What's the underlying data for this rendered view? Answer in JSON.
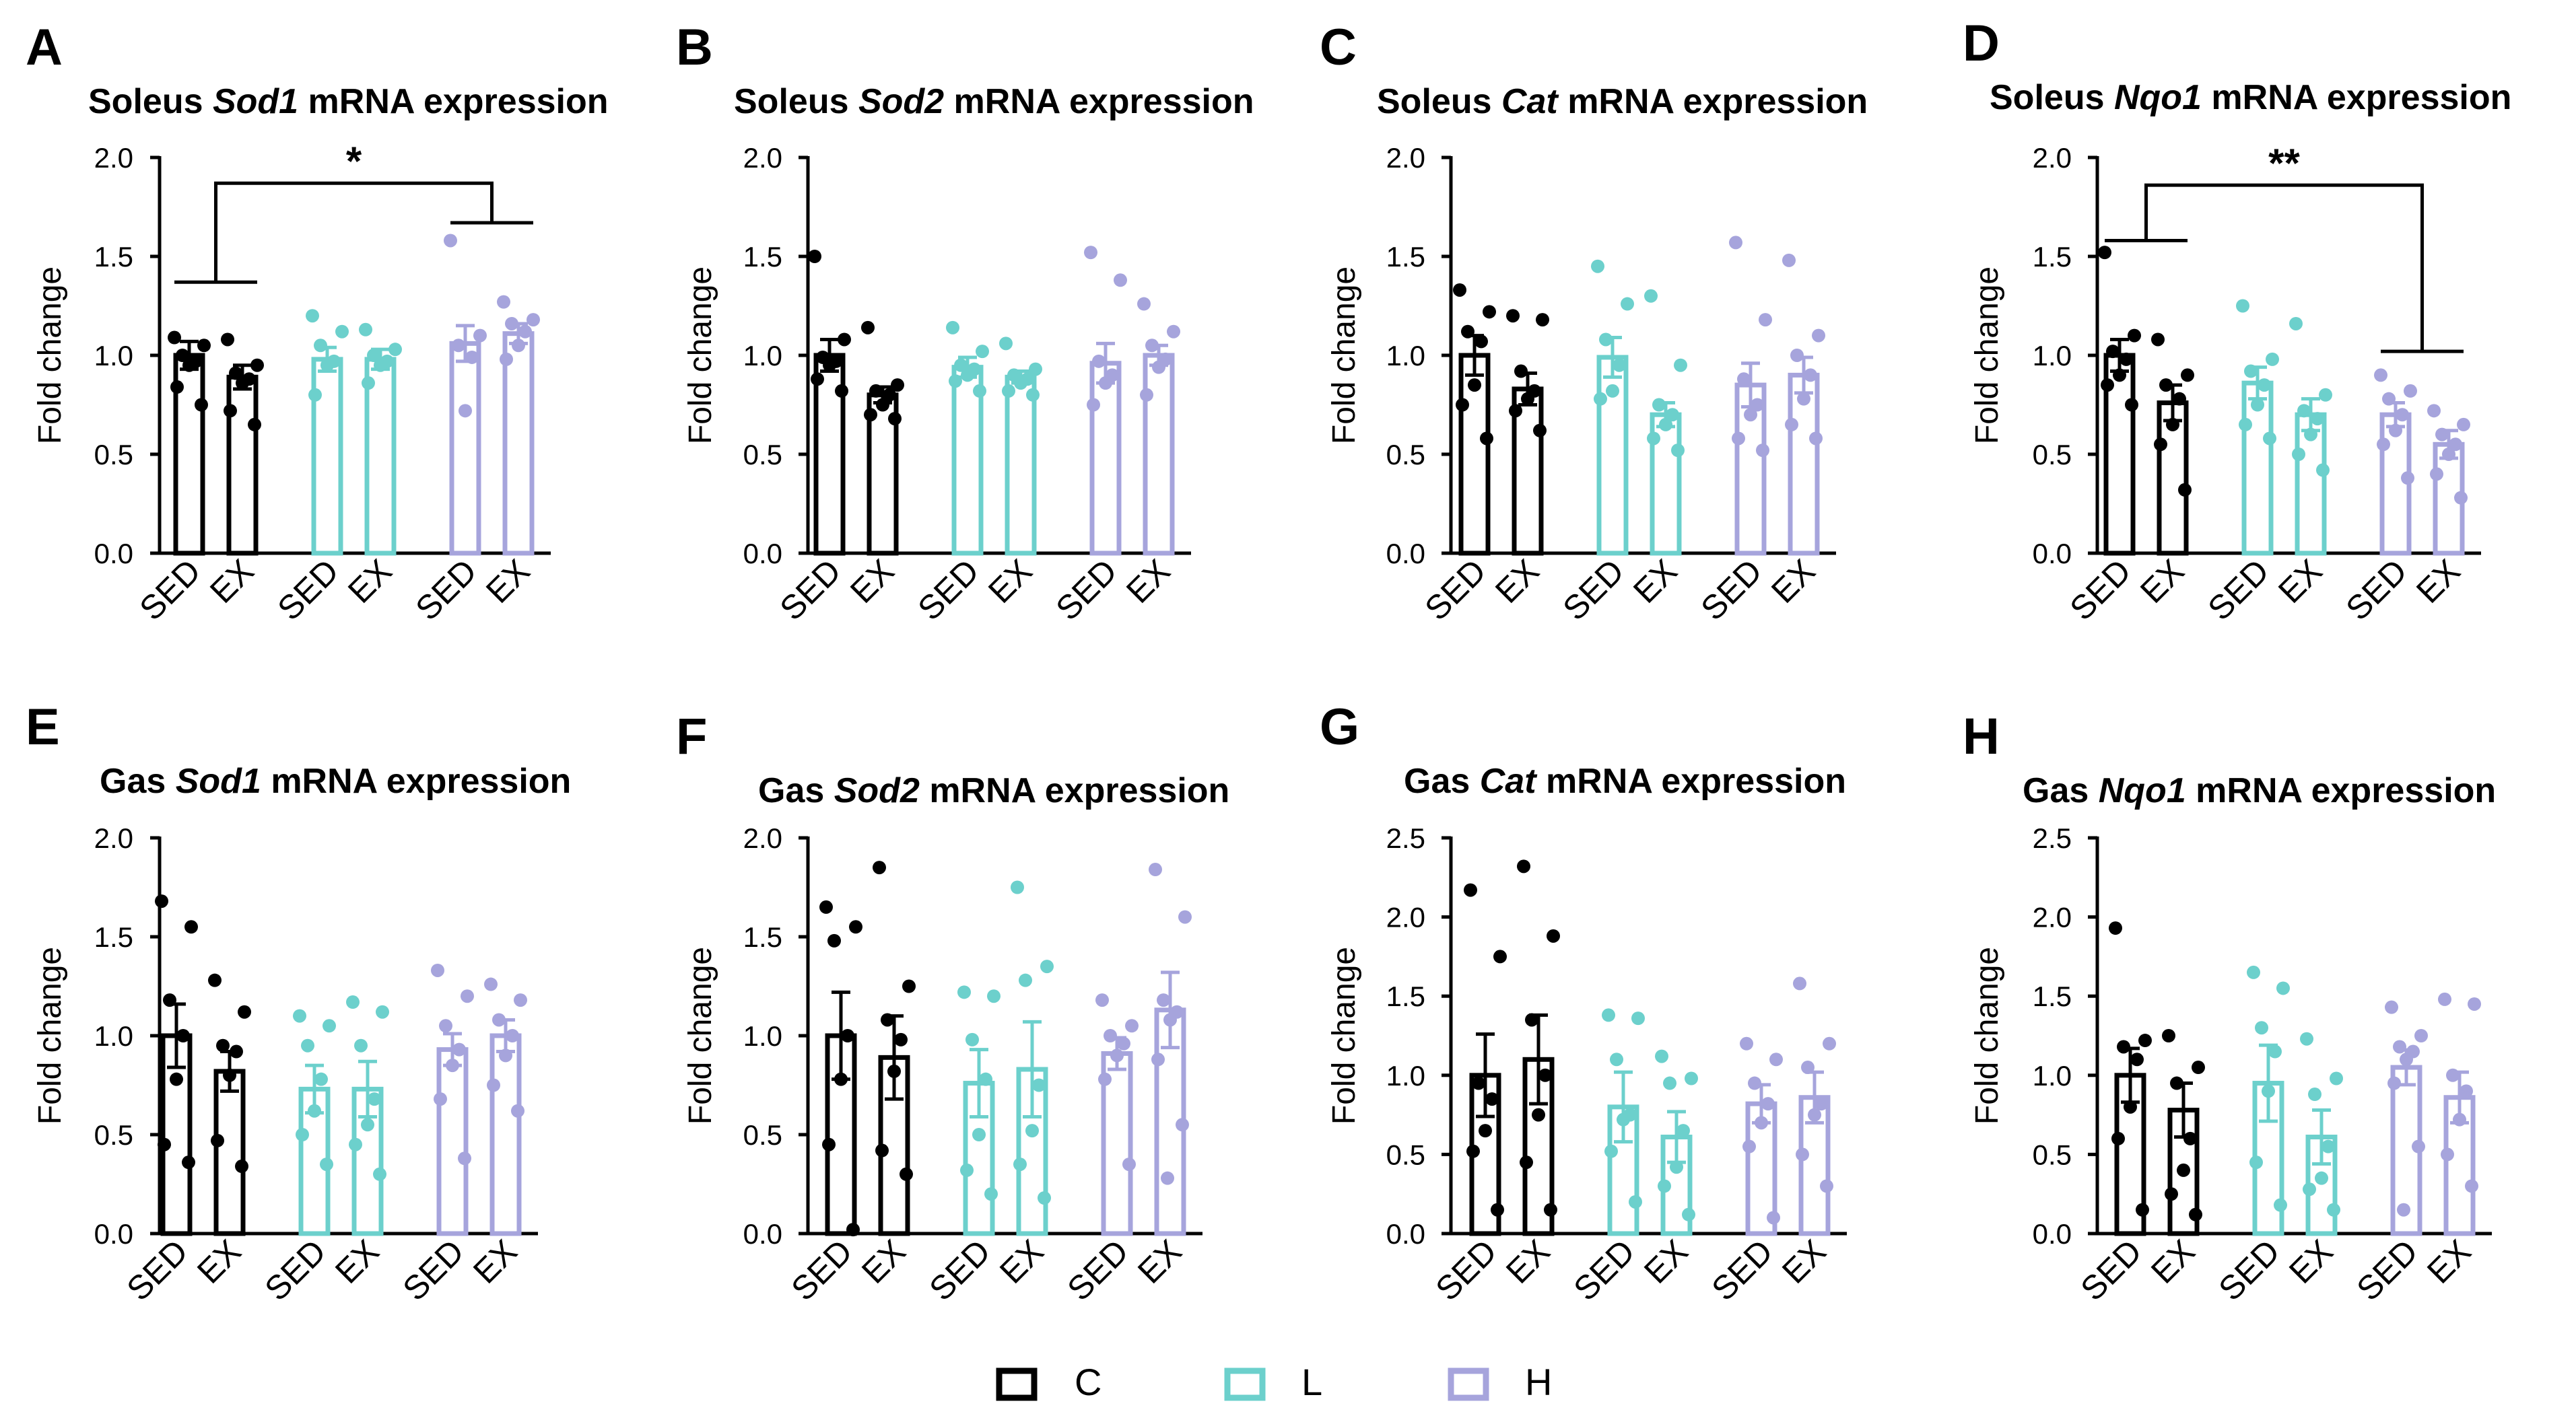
{
  "figure": {
    "groups": [
      {
        "name": "C",
        "color": "#000000"
      },
      {
        "name": "L",
        "color": "#6cd0cc"
      },
      {
        "name": "H",
        "color": "#a6a4dc"
      }
    ],
    "legend": [
      {
        "label": "C",
        "color": "#000000"
      },
      {
        "label": "L",
        "color": "#6cd0cc"
      },
      {
        "label": "H",
        "color": "#a6a4dc"
      }
    ]
  },
  "chart_data": [
    {
      "panel": "A",
      "type": "bar",
      "title": {
        "prefix": "Soleus ",
        "gene": "Sod1",
        "suffix": " mRNA expression"
      },
      "ylabel": "Fold change",
      "ylim": [
        0,
        2.0
      ],
      "yticks": [
        "0.0",
        "0.5",
        "1.0",
        "1.5",
        "2.0"
      ],
      "categories": [
        "SED",
        "EX",
        "SED",
        "EX",
        "SED",
        "EX"
      ],
      "groups": [
        "C",
        "C",
        "L",
        "L",
        "H",
        "H"
      ],
      "means": [
        1.0,
        0.89,
        0.98,
        0.98,
        1.06,
        1.11
      ],
      "sem": [
        0.07,
        0.06,
        0.06,
        0.05,
        0.09,
        0.05
      ],
      "points": [
        [
          1.09,
          1.05,
          1.0,
          0.97,
          0.95,
          0.84,
          0.75
        ],
        [
          1.08,
          0.95,
          0.91,
          0.88,
          0.86,
          0.72,
          0.65
        ],
        [
          1.2,
          1.12,
          1.05,
          0.97,
          0.95,
          0.8
        ],
        [
          1.13,
          1.03,
          1.0,
          0.97,
          0.95,
          0.86
        ],
        [
          1.58,
          1.1,
          1.05,
          0.99,
          0.72
        ],
        [
          1.27,
          1.18,
          1.16,
          1.12,
          1.05,
          0.98
        ]
      ],
      "significance": {
        "label": "*",
        "left": [
          0,
          1
        ],
        "right": [
          4,
          5
        ],
        "left_y": 1.37,
        "right_y": 1.67,
        "top_y": 1.87
      }
    },
    {
      "panel": "B",
      "type": "bar",
      "title": {
        "prefix": "Soleus ",
        "gene": "Sod2",
        "suffix": " mRNA expression"
      },
      "ylabel": "Fold change",
      "ylim": [
        0,
        2.0
      ],
      "yticks": [
        "0.0",
        "0.5",
        "1.0",
        "1.5",
        "2.0"
      ],
      "categories": [
        "SED",
        "EX",
        "SED",
        "EX",
        "SED",
        "EX"
      ],
      "groups": [
        "C",
        "C",
        "L",
        "L",
        "H",
        "H"
      ],
      "means": [
        1.0,
        0.8,
        0.94,
        0.89,
        0.96,
        1.0
      ],
      "sem": [
        0.08,
        0.04,
        0.05,
        0.03,
        0.1,
        0.05
      ],
      "points": [
        [
          1.5,
          1.08,
          0.99,
          0.97,
          0.95,
          0.88,
          0.82
        ],
        [
          1.14,
          0.85,
          0.82,
          0.8,
          0.75,
          0.7,
          0.68
        ],
        [
          1.14,
          1.02,
          0.95,
          0.93,
          0.9,
          0.87,
          0.82
        ],
        [
          1.06,
          0.93,
          0.9,
          0.88,
          0.86,
          0.82,
          0.8
        ],
        [
          1.52,
          1.38,
          0.97,
          0.9,
          0.86,
          0.75
        ],
        [
          1.26,
          1.12,
          1.05,
          0.98,
          0.94,
          0.8
        ]
      ]
    },
    {
      "panel": "C",
      "type": "bar",
      "title": {
        "prefix": "Soleus ",
        "gene": "Cat",
        "suffix": " mRNA expression"
      },
      "ylabel": "Fold change",
      "ylim": [
        0,
        2.0
      ],
      "yticks": [
        "0.0",
        "0.5",
        "1.0",
        "1.5",
        "2.0"
      ],
      "categories": [
        "SED",
        "EX",
        "SED",
        "EX",
        "SED",
        "EX"
      ],
      "groups": [
        "C",
        "C",
        "L",
        "L",
        "H",
        "H"
      ],
      "means": [
        1.0,
        0.83,
        0.99,
        0.7,
        0.85,
        0.9
      ],
      "sem": [
        0.1,
        0.08,
        0.1,
        0.06,
        0.11,
        0.09
      ],
      "points": [
        [
          1.33,
          1.22,
          1.12,
          1.07,
          0.85,
          0.75,
          0.58
        ],
        [
          1.2,
          1.18,
          0.92,
          0.82,
          0.78,
          0.72,
          0.62
        ],
        [
          1.45,
          1.26,
          1.08,
          0.95,
          0.82,
          0.78
        ],
        [
          1.3,
          0.95,
          0.75,
          0.7,
          0.65,
          0.58,
          0.52
        ],
        [
          1.57,
          1.18,
          0.88,
          0.75,
          0.7,
          0.58,
          0.52
        ],
        [
          1.48,
          1.1,
          1.0,
          0.9,
          0.78,
          0.65,
          0.58
        ]
      ]
    },
    {
      "panel": "D",
      "type": "bar",
      "title": {
        "prefix": "Soleus ",
        "gene": "Nqo1",
        "suffix": " mRNA expression"
      },
      "ylabel": "Fold change",
      "ylim": [
        0,
        2.0
      ],
      "yticks": [
        "0.0",
        "0.5",
        "1.0",
        "1.5",
        "2.0"
      ],
      "categories": [
        "SED",
        "EX",
        "SED",
        "EX",
        "SED",
        "EX"
      ],
      "groups": [
        "C",
        "C",
        "L",
        "L",
        "H",
        "H"
      ],
      "means": [
        1.0,
        0.76,
        0.86,
        0.7,
        0.7,
        0.55
      ],
      "sem": [
        0.08,
        0.09,
        0.08,
        0.08,
        0.06,
        0.07
      ],
      "points": [
        [
          1.52,
          1.1,
          1.02,
          0.98,
          0.9,
          0.85,
          0.75
        ],
        [
          1.08,
          0.9,
          0.85,
          0.78,
          0.65,
          0.55,
          0.32
        ],
        [
          1.25,
          0.98,
          0.92,
          0.85,
          0.75,
          0.65,
          0.58
        ],
        [
          1.16,
          0.8,
          0.72,
          0.68,
          0.6,
          0.5,
          0.42
        ],
        [
          0.9,
          0.82,
          0.78,
          0.7,
          0.62,
          0.55,
          0.38
        ],
        [
          0.72,
          0.65,
          0.6,
          0.55,
          0.5,
          0.4,
          0.28
        ]
      ],
      "significance": {
        "label": "**",
        "left": [
          0,
          1
        ],
        "right": [
          4,
          5
        ],
        "left_y": 1.58,
        "right_y": 1.02,
        "top_y": 1.86
      }
    },
    {
      "panel": "E",
      "type": "bar",
      "title": {
        "prefix": "Gas ",
        "gene": "Sod1",
        "suffix": " mRNA expression"
      },
      "ylabel": "Fold change",
      "ylim": [
        0,
        2.0
      ],
      "yticks": [
        "0.0",
        "0.5",
        "1.0",
        "1.5",
        "2.0"
      ],
      "categories": [
        "SED",
        "EX",
        "SED",
        "EX",
        "SED",
        "EX"
      ],
      "groups": [
        "C",
        "C",
        "L",
        "L",
        "H",
        "H"
      ],
      "means": [
        1.0,
        0.82,
        0.73,
        0.73,
        0.93,
        1.0
      ],
      "sem": [
        0.16,
        0.1,
        0.12,
        0.14,
        0.08,
        0.08
      ],
      "points": [
        [
          1.68,
          1.55,
          1.18,
          1.0,
          0.78,
          0.45,
          0.36
        ],
        [
          1.28,
          1.12,
          0.95,
          0.92,
          0.8,
          0.47,
          0.34
        ],
        [
          1.1,
          1.05,
          0.95,
          0.78,
          0.62,
          0.5,
          0.35
        ],
        [
          1.17,
          1.12,
          0.95,
          0.68,
          0.55,
          0.45,
          0.3
        ],
        [
          1.33,
          1.2,
          1.05,
          0.93,
          0.85,
          0.68,
          0.38
        ],
        [
          1.26,
          1.18,
          1.08,
          1.0,
          0.9,
          0.75,
          0.62
        ]
      ]
    },
    {
      "panel": "F",
      "type": "bar",
      "title": {
        "prefix": "Gas ",
        "gene": "Sod2",
        "suffix": " mRNA expression"
      },
      "ylabel": "Fold change",
      "ylim": [
        0,
        2.0
      ],
      "yticks": [
        "0.0",
        "0.5",
        "1.0",
        "1.5",
        "2.0"
      ],
      "categories": [
        "SED",
        "EX",
        "SED",
        "EX",
        "SED",
        "EX"
      ],
      "groups": [
        "C",
        "C",
        "L",
        "L",
        "H",
        "H"
      ],
      "means": [
        1.0,
        0.89,
        0.76,
        0.83,
        0.91,
        1.13
      ],
      "sem": [
        0.22,
        0.21,
        0.17,
        0.24,
        0.08,
        0.19
      ],
      "points": [
        [
          1.65,
          1.55,
          1.48,
          1.0,
          0.78,
          0.45,
          0.02
        ],
        [
          1.85,
          1.25,
          1.08,
          0.98,
          0.82,
          0.42,
          0.3
        ],
        [
          1.22,
          1.2,
          0.98,
          0.78,
          0.5,
          0.32,
          0.2
        ],
        [
          1.75,
          1.35,
          1.28,
          0.75,
          0.52,
          0.35,
          0.18
        ],
        [
          1.18,
          1.05,
          1.0,
          0.96,
          0.9,
          0.78,
          0.35
        ],
        [
          1.84,
          1.6,
          1.18,
          1.12,
          1.08,
          0.88,
          0.55,
          0.28
        ]
      ]
    },
    {
      "panel": "G",
      "type": "bar",
      "title": {
        "prefix": "Gas ",
        "gene": "Cat",
        "suffix": " mRNA expression"
      },
      "ylabel": "Fold change",
      "ylim": [
        0,
        2.5
      ],
      "yticks": [
        "0.0",
        "0.5",
        "1.0",
        "1.5",
        "2.0",
        "2.5"
      ],
      "categories": [
        "SED",
        "EX",
        "SED",
        "EX",
        "SED",
        "EX"
      ],
      "groups": [
        "C",
        "C",
        "L",
        "L",
        "H",
        "H"
      ],
      "means": [
        1.0,
        1.1,
        0.8,
        0.61,
        0.82,
        0.86
      ],
      "sem": [
        0.26,
        0.28,
        0.22,
        0.16,
        0.12,
        0.16
      ],
      "points": [
        [
          2.17,
          1.75,
          0.95,
          0.85,
          0.65,
          0.52,
          0.15
        ],
        [
          2.32,
          1.88,
          1.35,
          1.0,
          0.75,
          0.45,
          0.15
        ],
        [
          1.38,
          1.36,
          1.1,
          0.75,
          0.72,
          0.52,
          0.2
        ],
        [
          1.12,
          0.98,
          0.95,
          0.65,
          0.42,
          0.3,
          0.12
        ],
        [
          1.2,
          1.1,
          0.95,
          0.82,
          0.7,
          0.55,
          0.1
        ],
        [
          1.58,
          1.2,
          1.05,
          0.82,
          0.75,
          0.5,
          0.3
        ]
      ]
    },
    {
      "panel": "H",
      "type": "bar",
      "title": {
        "prefix": "Gas ",
        "gene": "Nqo1",
        "suffix": " mRNA expression"
      },
      "ylabel": "Fold change",
      "ylim": [
        0,
        2.5
      ],
      "yticks": [
        "0.0",
        "0.5",
        "1.0",
        "1.5",
        "2.0",
        "2.5"
      ],
      "categories": [
        "SED",
        "EX",
        "SED",
        "EX",
        "SED",
        "EX"
      ],
      "groups": [
        "C",
        "C",
        "L",
        "L",
        "H",
        "H"
      ],
      "means": [
        1.0,
        0.78,
        0.95,
        0.61,
        1.05,
        0.86
      ],
      "sem": [
        0.17,
        0.17,
        0.24,
        0.17,
        0.11,
        0.16
      ],
      "points": [
        [
          1.93,
          1.22,
          1.18,
          1.1,
          0.8,
          0.6,
          0.15
        ],
        [
          1.25,
          1.05,
          0.95,
          0.6,
          0.4,
          0.25,
          0.12
        ],
        [
          1.65,
          1.55,
          1.3,
          1.15,
          0.9,
          0.45,
          0.18
        ],
        [
          1.23,
          0.98,
          0.88,
          0.55,
          0.35,
          0.28,
          0.15
        ],
        [
          1.43,
          1.25,
          1.18,
          1.15,
          1.1,
          0.95,
          0.55,
          0.15
        ],
        [
          1.48,
          1.45,
          1.0,
          0.9,
          0.72,
          0.5,
          0.3
        ]
      ]
    }
  ]
}
